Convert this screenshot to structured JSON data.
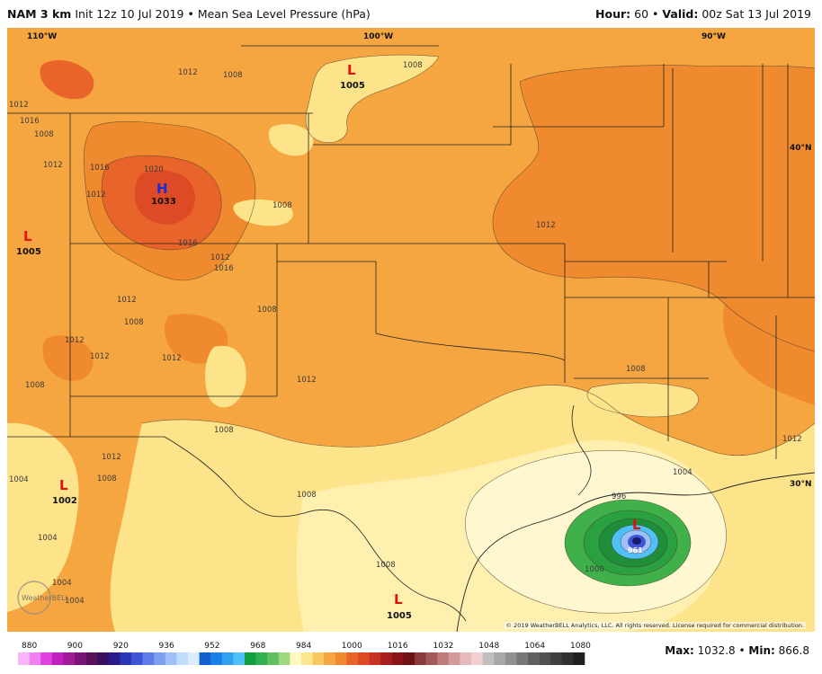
{
  "header": {
    "model": "NAM 3 km",
    "init": "Init 12z 10 Jul 2019",
    "separator": "•",
    "field": "Mean Sea Level Pressure (hPa)",
    "hour_label": "Hour:",
    "hour_value": "60",
    "valid_label": "Valid:",
    "valid_value": "00z Sat 13 Jul 2019"
  },
  "map": {
    "graticule_labels": [
      "110°W",
      "100°W",
      "90°W",
      "40°N",
      "30°N"
    ],
    "pressure_centers": [
      {
        "symbol": "H",
        "value": "1033"
      },
      {
        "symbol": "L",
        "value": "1005"
      },
      {
        "symbol": "L",
        "value": "1005"
      },
      {
        "symbol": "L",
        "value": "1002"
      },
      {
        "symbol": "L",
        "value": "1005"
      },
      {
        "symbol": "L",
        "value": "961"
      }
    ],
    "isobar_labels": [
      "1012",
      "1012",
      "1016",
      "1008",
      "1008",
      "1012",
      "1016",
      "1020",
      "1012",
      "1016",
      "1008",
      "1008",
      "1008",
      "1012",
      "1012",
      "1012",
      "1012",
      "1008",
      "1012",
      "1008",
      "1008",
      "1008",
      "1012",
      "1004",
      "1012",
      "1008",
      "1012",
      "1004",
      "1004",
      "1004",
      "1004",
      "1008",
      "1000",
      "996",
      "1008",
      "1012",
      "1016"
    ],
    "copyright": "© 2019 WeatherBELL Analytics, LLC. All rights reserved. License required for commercial distribution.",
    "logo_text": "WeatherBELL",
    "colors": {
      "base": "#f6a640",
      "high_1016": "#f08a2e",
      "high_1020": "#e8642a",
      "high_1024": "#dd4a26",
      "low_1008": "#fde38a",
      "low_1004": "#fff0b0",
      "low_1000": "#fff7d0",
      "cyclone_outer": "#3fb04a",
      "cyclone_mid": "#1e8e3a",
      "cyclone_inner": "#146e2c"
    }
  },
  "colorbar": {
    "ticks": [
      "880",
      "900",
      "920",
      "936",
      "952",
      "968",
      "984",
      "1000",
      "1016",
      "1032",
      "1048",
      "1064",
      "1080"
    ],
    "colors": [
      "#f7b6f7",
      "#f07ff0",
      "#e040e0",
      "#c020c0",
      "#a01a9a",
      "#7a1478",
      "#5a105a",
      "#3a0e5e",
      "#2a1a8a",
      "#2b36b8",
      "#3f55d8",
      "#5d7de8",
      "#7ea0f0",
      "#a0c0f8",
      "#c0dcfc",
      "#dcecfe",
      "#1060d0",
      "#1a80e8",
      "#30a0f0",
      "#50c0f8",
      "#10a040",
      "#30b050",
      "#60c060",
      "#a0d880",
      "#fff8c0",
      "#fde78e",
      "#f9c860",
      "#f6a640",
      "#f08a2e",
      "#e8642a",
      "#dd4a26",
      "#c83222",
      "#a81e1c",
      "#8a1418",
      "#6e1216",
      "#8a3a3a",
      "#a45a5a",
      "#bf7a7a",
      "#d49a9a",
      "#e6baba",
      "#f0d0d0",
      "#c0c0c0",
      "#a8a8a8",
      "#909090",
      "#787878",
      "#606060",
      "#505050",
      "#404040",
      "#303030",
      "#202020"
    ]
  },
  "stats": {
    "max_label": "Max:",
    "max_value": "1032.8",
    "separator": "•",
    "min_label": "Min:",
    "min_value": "866.8"
  }
}
